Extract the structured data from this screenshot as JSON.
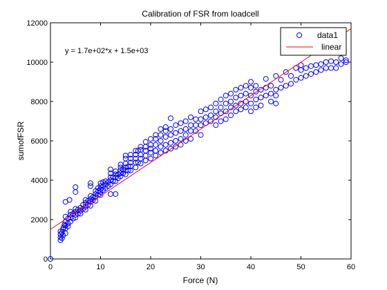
{
  "chart_data": {
    "type": "scatter",
    "title": "Calibration of FSR from loadcell",
    "xlabel": "Force (N)",
    "ylabel": "sumofFSR",
    "xlim": [
      0,
      60
    ],
    "ylim": [
      0,
      12000
    ],
    "xticks": [
      0,
      10,
      20,
      30,
      40,
      50,
      60
    ],
    "yticks": [
      0,
      2000,
      4000,
      6000,
      8000,
      10000,
      12000
    ],
    "xtick_labels": [
      "0",
      "10",
      "20",
      "30",
      "40",
      "50",
      "60"
    ],
    "ytick_labels": [
      "0",
      "2000",
      "4000",
      "6000",
      "8000",
      "10000",
      "12000"
    ],
    "grid": false,
    "legend_position": "top-right",
    "annotation": "y = 1.7e+02*x + 1.5e+03",
    "colors": {
      "data": "#0000ff",
      "fit": "#ff0000"
    },
    "series": [
      {
        "name": "data1",
        "marker": "circle",
        "points": [
          [
            0,
            0
          ],
          [
            2,
            950
          ],
          [
            2,
            1100
          ],
          [
            2,
            1250
          ],
          [
            2,
            1400
          ],
          [
            2.3,
            1050
          ],
          [
            2.3,
            1350
          ],
          [
            2.5,
            1500
          ],
          [
            2.5,
            1200
          ],
          [
            2.6,
            1600
          ],
          [
            2.8,
            1750
          ],
          [
            3,
            1300
          ],
          [
            3,
            1550
          ],
          [
            3,
            1700
          ],
          [
            3,
            1900
          ],
          [
            3,
            2150
          ],
          [
            3,
            2900
          ],
          [
            3.5,
            1650
          ],
          [
            3.5,
            1800
          ],
          [
            3.5,
            2050
          ],
          [
            3.8,
            3000
          ],
          [
            4,
            1900
          ],
          [
            4,
            2100
          ],
          [
            4,
            2250
          ],
          [
            4,
            2400
          ],
          [
            4.5,
            2050
          ],
          [
            4.5,
            2300
          ],
          [
            5,
            2100
          ],
          [
            5,
            2250
          ],
          [
            5,
            2400
          ],
          [
            5,
            2550
          ],
          [
            5,
            3400
          ],
          [
            5,
            3650
          ],
          [
            5.5,
            2300
          ],
          [
            5.5,
            2500
          ],
          [
            6,
            2300
          ],
          [
            6,
            2450
          ],
          [
            6,
            2600
          ],
          [
            6.5,
            2550
          ],
          [
            6.5,
            2750
          ],
          [
            7,
            2500
          ],
          [
            7,
            2650
          ],
          [
            7,
            2850
          ],
          [
            7,
            3000
          ],
          [
            7.5,
            2750
          ],
          [
            7.5,
            2950
          ],
          [
            8,
            2700
          ],
          [
            8,
            2900
          ],
          [
            8,
            3050
          ],
          [
            8,
            3200
          ],
          [
            8,
            3700
          ],
          [
            8,
            3850
          ],
          [
            8.5,
            3000
          ],
          [
            8.5,
            3150
          ],
          [
            9,
            2950
          ],
          [
            9,
            3150
          ],
          [
            9,
            3300
          ],
          [
            9,
            3450
          ],
          [
            9.5,
            3250
          ],
          [
            9.5,
            3450
          ],
          [
            9.5,
            3600
          ],
          [
            10,
            3250
          ],
          [
            10,
            3400
          ],
          [
            10,
            3550
          ],
          [
            10,
            3700
          ],
          [
            10,
            3850
          ],
          [
            10.5,
            3500
          ],
          [
            10.5,
            3700
          ],
          [
            10.5,
            3900
          ],
          [
            11,
            3600
          ],
          [
            11,
            3800
          ],
          [
            11,
            3950
          ],
          [
            11.5,
            3700
          ],
          [
            11.5,
            3900
          ],
          [
            12,
            3800
          ],
          [
            12,
            4000
          ],
          [
            12,
            4150
          ],
          [
            12,
            4350
          ],
          [
            12,
            4550
          ],
          [
            12,
            3300
          ],
          [
            12.5,
            3950
          ],
          [
            12.5,
            4150
          ],
          [
            13,
            3950
          ],
          [
            13,
            4150
          ],
          [
            13,
            4300
          ],
          [
            13,
            4450
          ],
          [
            13,
            3300
          ],
          [
            13.5,
            4100
          ],
          [
            13.5,
            4300
          ],
          [
            14,
            4200
          ],
          [
            14,
            4350
          ],
          [
            14,
            4500
          ],
          [
            14,
            4650
          ],
          [
            14,
            4800
          ],
          [
            14.5,
            4350
          ],
          [
            14.5,
            4550
          ],
          [
            15,
            4300
          ],
          [
            15,
            4500
          ],
          [
            15,
            4650
          ],
          [
            15,
            4850
          ],
          [
            15,
            5100
          ],
          [
            15,
            5250
          ],
          [
            15.5,
            4500
          ],
          [
            15.5,
            4700
          ],
          [
            16,
            4500
          ],
          [
            16,
            4700
          ],
          [
            16,
            4900
          ],
          [
            16,
            5100
          ],
          [
            16,
            5300
          ],
          [
            17,
            4650
          ],
          [
            17,
            4900
          ],
          [
            17,
            5100
          ],
          [
            17,
            5300
          ],
          [
            17,
            5500
          ],
          [
            17.5,
            4900
          ],
          [
            17.5,
            5500
          ],
          [
            18,
            4850
          ],
          [
            18,
            5100
          ],
          [
            18,
            5300
          ],
          [
            18,
            5550
          ],
          [
            18,
            5700
          ],
          [
            19,
            5000
          ],
          [
            19,
            5250
          ],
          [
            19,
            5500
          ],
          [
            19,
            5700
          ],
          [
            19,
            5950
          ],
          [
            20,
            5100
          ],
          [
            20,
            5400
          ],
          [
            20,
            5600
          ],
          [
            20,
            5800
          ],
          [
            20,
            6100
          ],
          [
            21,
            5250
          ],
          [
            21,
            5500
          ],
          [
            21,
            5800
          ],
          [
            21,
            6100
          ],
          [
            21,
            6300
          ],
          [
            22,
            5400
          ],
          [
            22,
            5700
          ],
          [
            22,
            6000
          ],
          [
            22,
            6300
          ],
          [
            22,
            6600
          ],
          [
            23,
            5500
          ],
          [
            23,
            5800
          ],
          [
            23,
            6200
          ],
          [
            23,
            6500
          ],
          [
            23,
            6700
          ],
          [
            24,
            5600
          ],
          [
            24,
            5900
          ],
          [
            24,
            6300
          ],
          [
            24,
            6600
          ],
          [
            24,
            7150
          ],
          [
            25,
            5700
          ],
          [
            25,
            6000
          ],
          [
            25,
            6400
          ],
          [
            25,
            6800
          ],
          [
            26,
            5800
          ],
          [
            26,
            6100
          ],
          [
            26,
            6500
          ],
          [
            26,
            6900
          ],
          [
            27,
            6000
          ],
          [
            27,
            6300
          ],
          [
            27,
            6600
          ],
          [
            27,
            7000
          ],
          [
            28,
            6100
          ],
          [
            28,
            6500
          ],
          [
            28,
            6800
          ],
          [
            28,
            7200
          ],
          [
            29,
            6500
          ],
          [
            29,
            6800
          ],
          [
            29,
            7100
          ],
          [
            30,
            6800
          ],
          [
            30,
            7100
          ],
          [
            30,
            7500
          ],
          [
            30,
            6300
          ],
          [
            31,
            6900
          ],
          [
            31,
            7200
          ],
          [
            31,
            7600
          ],
          [
            32,
            7000
          ],
          [
            32,
            7300
          ],
          [
            32,
            7700
          ],
          [
            33,
            6800
          ],
          [
            33,
            7200
          ],
          [
            33,
            7500
          ],
          [
            33,
            7900
          ],
          [
            34,
            7000
          ],
          [
            34,
            7400
          ],
          [
            34,
            7700
          ],
          [
            34,
            8100
          ],
          [
            35,
            7100
          ],
          [
            35,
            7500
          ],
          [
            35,
            7900
          ],
          [
            35,
            8300
          ],
          [
            36,
            7300
          ],
          [
            36,
            7700
          ],
          [
            36,
            8000
          ],
          [
            36,
            8400
          ],
          [
            37,
            7500
          ],
          [
            37,
            7800
          ],
          [
            37,
            8200
          ],
          [
            37,
            8600
          ],
          [
            38,
            7600
          ],
          [
            38,
            7900
          ],
          [
            38,
            8300
          ],
          [
            38,
            8700
          ],
          [
            39,
            7700
          ],
          [
            39,
            8000
          ],
          [
            39,
            8400
          ],
          [
            39,
            8800
          ],
          [
            40,
            7500
          ],
          [
            40,
            7900
          ],
          [
            40,
            8300
          ],
          [
            40,
            8700
          ],
          [
            40,
            9000
          ],
          [
            41,
            7700
          ],
          [
            41,
            8100
          ],
          [
            41,
            8500
          ],
          [
            41,
            8800
          ],
          [
            42,
            7800
          ],
          [
            42,
            8200
          ],
          [
            42,
            8600
          ],
          [
            43,
            8300
          ],
          [
            43,
            8700
          ],
          [
            43,
            9150
          ],
          [
            44,
            8000
          ],
          [
            44,
            8400
          ],
          [
            44,
            8800
          ],
          [
            45,
            7900
          ],
          [
            45,
            8300
          ],
          [
            45,
            8600
          ],
          [
            45,
            9300
          ],
          [
            46,
            8700
          ],
          [
            46,
            9100
          ],
          [
            47,
            8800
          ],
          [
            47,
            9500
          ],
          [
            48,
            8900
          ],
          [
            48,
            9300
          ],
          [
            49,
            9100
          ],
          [
            49,
            9700
          ],
          [
            50,
            9200
          ],
          [
            50,
            9600
          ],
          [
            50,
            9850
          ],
          [
            51,
            9300
          ],
          [
            51,
            9700
          ],
          [
            52,
            9400
          ],
          [
            52,
            9800
          ],
          [
            53,
            9500
          ],
          [
            53,
            9850
          ],
          [
            54,
            9600
          ],
          [
            54,
            9900
          ],
          [
            55,
            9700
          ],
          [
            55,
            10000
          ],
          [
            56,
            9700
          ],
          [
            56,
            10050
          ],
          [
            57,
            9700
          ],
          [
            57,
            10000
          ],
          [
            58,
            9900
          ],
          [
            58,
            10200
          ],
          [
            59,
            10000
          ],
          [
            59,
            10100
          ]
        ]
      },
      {
        "name": "linear",
        "line": true,
        "slope": 170,
        "intercept": 1500,
        "x_range": [
          0,
          60
        ]
      }
    ]
  }
}
